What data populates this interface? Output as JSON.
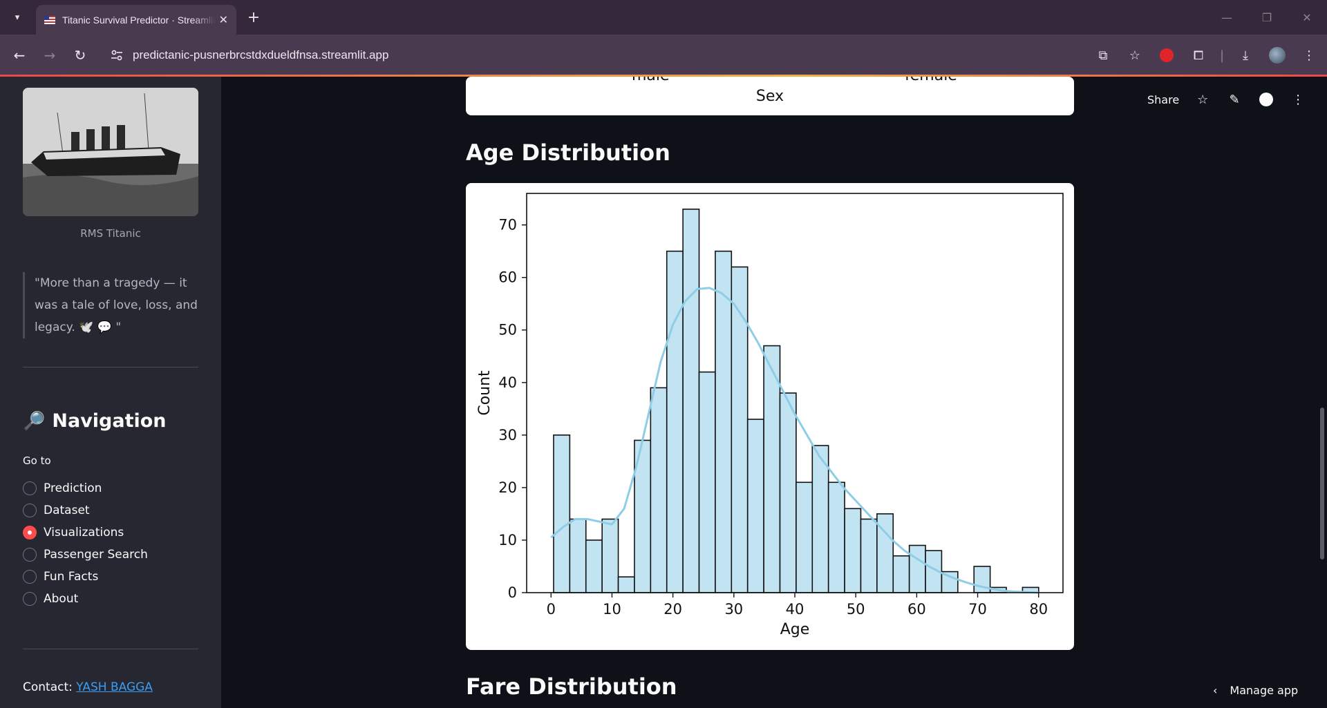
{
  "browser": {
    "tab_title": "Titanic Survival Predictor · Streamlit",
    "url": "predictanic-pusnerbrcstdxdueldfnsa.streamlit.app"
  },
  "sidebar": {
    "image_caption": "RMS Titanic",
    "quote": "\"More than a tragedy — it was a tale of love, loss, and legacy. 🕊️ 💬 \"",
    "nav_heading": "Navigation",
    "go_to_label": "Go to",
    "options": [
      "Prediction",
      "Dataset",
      "Visualizations",
      "Passenger Search",
      "Fun Facts",
      "About"
    ],
    "selected": "Visualizations",
    "contact_label": "Contact:",
    "contact_name": "YASH BAGGA"
  },
  "toolbar": {
    "share_label": "Share"
  },
  "prev_chart": {
    "ticks": [
      "male",
      "female"
    ],
    "xlabel": "Sex"
  },
  "section_age": "Age Distribution",
  "section_fare": "Fare Distribution",
  "manage_app_label": "Manage app",
  "chart_data": {
    "type": "bar",
    "title": "",
    "xlabel": "Age",
    "ylabel": "Count",
    "xlim": [
      -4,
      84
    ],
    "ylim": [
      0,
      76
    ],
    "xticks": [
      0,
      10,
      20,
      30,
      40,
      50,
      60,
      70,
      80
    ],
    "yticks": [
      0,
      10,
      20,
      30,
      40,
      50,
      60,
      70
    ],
    "bin_start": 0.42,
    "bin_width": 2.653,
    "counts": [
      30,
      14,
      10,
      14,
      3,
      29,
      39,
      65,
      73,
      42,
      65,
      62,
      33,
      47,
      38,
      21,
      28,
      21,
      16,
      14,
      15,
      7,
      9,
      8,
      4,
      0,
      5,
      1,
      0,
      1
    ],
    "bar_color": "#c2e4f2",
    "kde": {
      "color": "#8ecde6",
      "x": [
        0,
        2,
        4,
        6,
        8,
        10,
        12,
        14,
        16,
        18,
        20,
        22,
        24,
        26,
        28,
        30,
        32,
        34,
        36,
        38,
        40,
        42,
        44,
        46,
        48,
        50,
        52,
        54,
        56,
        58,
        60,
        62,
        64,
        66,
        68,
        70,
        72,
        74,
        76,
        78,
        80
      ],
      "y": [
        10.5,
        12.5,
        14,
        14,
        13.5,
        13,
        16,
        24,
        34,
        44,
        51,
        55.5,
        57.8,
        58,
        57,
        55,
        51.5,
        47.5,
        43,
        38.5,
        34,
        30,
        26,
        23,
        20,
        17.5,
        15,
        12.5,
        10,
        8,
        6.5,
        5,
        3.8,
        2.8,
        2,
        1.3,
        0.8,
        0.4,
        0.2,
        0.1,
        0
      ]
    }
  }
}
